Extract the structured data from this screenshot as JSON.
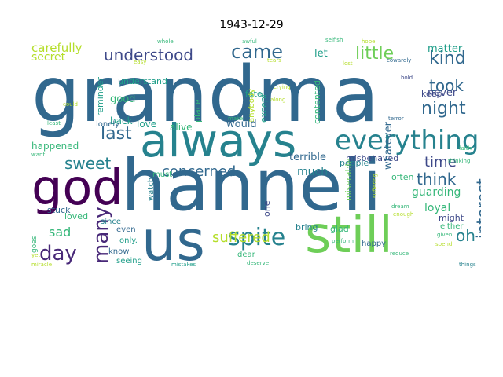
{
  "title": "1943-12-29",
  "words": [
    "grandma",
    "hanneli",
    "always",
    "us",
    "still",
    "god",
    "everything",
    "day",
    "spite",
    "sweet",
    "last",
    "many",
    "came",
    "little",
    "kind",
    "night",
    "took",
    "understood",
    "interest",
    "think",
    "time",
    "suffered",
    "concerned",
    "carefully",
    "secret",
    "sad",
    "oh",
    "guarding",
    "loyal",
    "terrible",
    "misbehaved",
    "happened",
    "matter",
    "never",
    "let",
    "good",
    "understand",
    "reminder",
    "fate",
    "anybody",
    "except",
    "place",
    "contented",
    "keep",
    "back",
    "love",
    "alive",
    "would",
    "much",
    "whatever",
    "often",
    "people",
    "lonely",
    "since",
    "must",
    "watch",
    "stuck",
    "loved",
    "even",
    "only.",
    "seeing",
    "know",
    "goes",
    "one",
    "bring",
    "glad",
    "dear",
    "happy",
    "might",
    "either",
    "miserable",
    "whole",
    "awful",
    "selfish",
    "hope",
    "cowardly",
    "hold",
    "terror",
    "faith",
    "thinking",
    "suffering",
    "dream",
    "enough",
    "perform",
    "given",
    "spend",
    "reduce",
    "things",
    "deserve",
    "mistakes",
    "make",
    "least",
    "yet",
    "want",
    "could",
    "along",
    "crying",
    "tears",
    "miracle",
    "easy",
    "lost"
  ],
  "colors": {
    "dark_purple": "#440154",
    "purple": "#482878",
    "indigo": "#3e4989",
    "blue": "#31688e",
    "teal": "#26828e",
    "sea": "#1f9e89",
    "green": "#35b779",
    "lime": "#6ece58",
    "yellow_green": "#b5de2b",
    "yellow": "#fde725"
  }
}
